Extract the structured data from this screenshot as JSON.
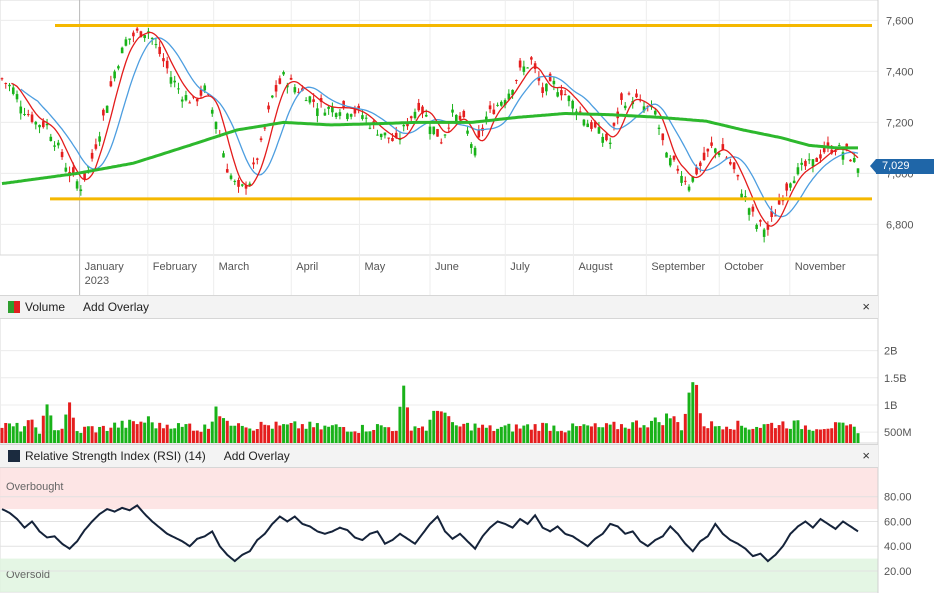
{
  "chart_data": [
    {
      "type": "candlestick",
      "y_ticks": [
        "7,600",
        "7,400",
        "7,200",
        "7,000",
        "6,800"
      ],
      "y_tick_values": [
        7600,
        7400,
        7200,
        7000,
        6800
      ],
      "ylim": [
        6680,
        7680
      ],
      "x_labels": [
        {
          "label": "January",
          "sub": "2023",
          "date": "2023-01-03"
        },
        {
          "label": "February",
          "date": "2023-02-01"
        },
        {
          "label": "March",
          "date": "2023-03-01"
        },
        {
          "label": "April",
          "date": "2023-04-03"
        },
        {
          "label": "May",
          "date": "2023-05-02"
        },
        {
          "label": "June",
          "date": "2023-06-01"
        },
        {
          "label": "July",
          "date": "2023-07-03"
        },
        {
          "label": "August",
          "date": "2023-08-01"
        },
        {
          "label": "September",
          "date": "2023-09-01"
        },
        {
          "label": "October",
          "date": "2023-10-02"
        },
        {
          "label": "November",
          "date": "2023-11-01"
        }
      ],
      "last_price": "7,029",
      "horizontal_lines": [
        7580,
        6900
      ],
      "close_path": [
        [
          0,
          7370
        ],
        [
          6,
          7330
        ],
        [
          12,
          7250
        ],
        [
          18,
          7200
        ],
        [
          24,
          7190
        ],
        [
          30,
          7100
        ],
        [
          36,
          7000
        ],
        [
          42,
          6950
        ],
        [
          48,
          7060
        ],
        [
          54,
          7220
        ],
        [
          60,
          7400
        ],
        [
          66,
          7520
        ],
        [
          72,
          7550
        ],
        [
          78,
          7560
        ],
        [
          84,
          7470
        ],
        [
          90,
          7380
        ],
        [
          96,
          7310
        ],
        [
          102,
          7280
        ],
        [
          108,
          7330
        ],
        [
          114,
          7210
        ],
        [
          120,
          7020
        ],
        [
          126,
          6930
        ],
        [
          132,
          6970
        ],
        [
          138,
          7110
        ],
        [
          144,
          7300
        ],
        [
          150,
          7380
        ],
        [
          156,
          7340
        ],
        [
          162,
          7310
        ],
        [
          168,
          7270
        ],
        [
          174,
          7255
        ],
        [
          180,
          7260
        ],
        [
          186,
          7250
        ],
        [
          192,
          7230
        ],
        [
          198,
          7180
        ],
        [
          204,
          7150
        ],
        [
          210,
          7120
        ],
        [
          216,
          7200
        ],
        [
          222,
          7270
        ],
        [
          228,
          7200
        ],
        [
          234,
          7130
        ],
        [
          240,
          7230
        ],
        [
          246,
          7200
        ],
        [
          252,
          7080
        ],
        [
          258,
          7220
        ],
        [
          264,
          7270
        ],
        [
          270,
          7320
        ],
        [
          276,
          7400
        ],
        [
          282,
          7440
        ],
        [
          288,
          7320
        ],
        [
          294,
          7350
        ],
        [
          300,
          7310
        ],
        [
          306,
          7260
        ],
        [
          312,
          7200
        ],
        [
          318,
          7160
        ],
        [
          324,
          7120
        ],
        [
          330,
          7280
        ],
        [
          336,
          7300
        ],
        [
          342,
          7260
        ],
        [
          348,
          7240
        ],
        [
          354,
          7060
        ],
        [
          360,
          7020
        ],
        [
          366,
          6960
        ],
        [
          372,
          7030
        ],
        [
          378,
          7100
        ],
        [
          384,
          7090
        ],
        [
          390,
          7010
        ],
        [
          396,
          6900
        ],
        [
          402,
          6800
        ],
        [
          408,
          6780
        ],
        [
          414,
          6880
        ],
        [
          420,
          6980
        ],
        [
          426,
          7020
        ],
        [
          432,
          7040
        ],
        [
          438,
          7090
        ],
        [
          444,
          7100
        ],
        [
          450,
          7080
        ],
        [
          456,
          7029
        ]
      ],
      "moving_average_200": [
        [
          0,
          6960
        ],
        [
          40,
          7000
        ],
        [
          70,
          7040
        ],
        [
          100,
          7110
        ],
        [
          125,
          7170
        ],
        [
          150,
          7200
        ],
        [
          175,
          7190
        ],
        [
          200,
          7195
        ],
        [
          220,
          7200
        ],
        [
          250,
          7200
        ],
        [
          275,
          7220
        ],
        [
          300,
          7235
        ],
        [
          325,
          7230
        ],
        [
          350,
          7220
        ],
        [
          375,
          7205
        ],
        [
          395,
          7170
        ],
        [
          415,
          7140
        ],
        [
          430,
          7110
        ],
        [
          445,
          7100
        ],
        [
          456,
          7100
        ]
      ],
      "x_index_dates": {
        "start": "2022-12-01",
        "end": "2023-11-30"
      }
    },
    {
      "type": "bar",
      "title": "Volume",
      "y_ticks": [
        "2B",
        "1.5B",
        "1B",
        "500M"
      ],
      "y_tick_values": [
        2000000000,
        1500000000,
        1000000000,
        500000000
      ],
      "ylim": [
        300000000,
        2600000000
      ],
      "volume_bars": [
        [
          0,
          0.62
        ],
        [
          5,
          0.6
        ],
        [
          10,
          0.58
        ],
        [
          15,
          0.66
        ],
        [
          20,
          0.55
        ],
        [
          24,
          0.9
        ],
        [
          28,
          0.6
        ],
        [
          32,
          0.56
        ],
        [
          35,
          1.05
        ],
        [
          40,
          0.5
        ],
        [
          46,
          0.58
        ],
        [
          52,
          0.55
        ],
        [
          60,
          0.62
        ],
        [
          70,
          0.65
        ],
        [
          78,
          0.72
        ],
        [
          84,
          0.6
        ],
        [
          90,
          0.66
        ],
        [
          96,
          0.58
        ],
        [
          100,
          0.64
        ],
        [
          105,
          0.55
        ],
        [
          110,
          0.6
        ],
        [
          114,
          1.02
        ],
        [
          120,
          0.62
        ],
        [
          126,
          0.74
        ],
        [
          132,
          0.6
        ],
        [
          140,
          0.63
        ],
        [
          150,
          0.6
        ],
        [
          160,
          0.62
        ],
        [
          170,
          0.58
        ],
        [
          180,
          0.6
        ],
        [
          190,
          0.56
        ],
        [
          200,
          0.6
        ],
        [
          210,
          0.58
        ],
        [
          214,
          1.2
        ],
        [
          218,
          0.62
        ],
        [
          226,
          0.58
        ],
        [
          234,
          1.0
        ],
        [
          240,
          0.6
        ],
        [
          250,
          0.62
        ],
        [
          260,
          0.56
        ],
        [
          270,
          0.58
        ],
        [
          280,
          0.6
        ],
        [
          290,
          0.62
        ],
        [
          300,
          0.56
        ],
        [
          310,
          0.6
        ],
        [
          320,
          0.58
        ],
        [
          330,
          0.62
        ],
        [
          340,
          0.66
        ],
        [
          350,
          0.7
        ],
        [
          356,
          0.8
        ],
        [
          362,
          0.6
        ],
        [
          368,
          1.5
        ],
        [
          374,
          0.65
        ],
        [
          380,
          0.62
        ],
        [
          386,
          0.66
        ],
        [
          392,
          0.62
        ],
        [
          398,
          0.6
        ],
        [
          406,
          0.62
        ],
        [
          414,
          0.66
        ],
        [
          422,
          0.64
        ],
        [
          430,
          0.6
        ],
        [
          440,
          0.62
        ],
        [
          450,
          0.58
        ],
        [
          456,
          0.56
        ]
      ]
    },
    {
      "type": "line",
      "title": "Relative Strength Index (RSI) (14)",
      "y_ticks": [
        "80.00",
        "60.00",
        "40.00",
        "20.00"
      ],
      "y_tick_values": [
        80,
        60,
        40,
        20
      ],
      "ylim": [
        3,
        104
      ],
      "zones": [
        {
          "label": "Overbought",
          "from": 70,
          "to": 104
        },
        {
          "label": "Oversold",
          "from": 3,
          "to": 30
        }
      ],
      "rsi_path": [
        [
          0,
          70
        ],
        [
          4,
          67
        ],
        [
          8,
          62
        ],
        [
          12,
          55
        ],
        [
          16,
          60
        ],
        [
          20,
          52
        ],
        [
          24,
          47
        ],
        [
          28,
          48
        ],
        [
          32,
          42
        ],
        [
          36,
          38
        ],
        [
          40,
          44
        ],
        [
          44,
          53
        ],
        [
          48,
          60
        ],
        [
          52,
          66
        ],
        [
          56,
          70
        ],
        [
          60,
          68
        ],
        [
          64,
          71
        ],
        [
          68,
          69
        ],
        [
          72,
          73
        ],
        [
          76,
          66
        ],
        [
          80,
          60
        ],
        [
          84,
          55
        ],
        [
          88,
          50
        ],
        [
          92,
          47
        ],
        [
          96,
          44
        ],
        [
          100,
          40
        ],
        [
          104,
          46
        ],
        [
          108,
          48
        ],
        [
          112,
          52
        ],
        [
          116,
          40
        ],
        [
          120,
          33
        ],
        [
          124,
          28
        ],
        [
          128,
          33
        ],
        [
          132,
          36
        ],
        [
          136,
          45
        ],
        [
          140,
          50
        ],
        [
          144,
          58
        ],
        [
          148,
          64
        ],
        [
          152,
          60
        ],
        [
          156,
          64
        ],
        [
          160,
          58
        ],
        [
          164,
          56
        ],
        [
          168,
          52
        ],
        [
          172,
          50
        ],
        [
          176,
          52
        ],
        [
          180,
          55
        ],
        [
          184,
          53
        ],
        [
          188,
          47
        ],
        [
          192,
          45
        ],
        [
          196,
          50
        ],
        [
          200,
          52
        ],
        [
          204,
          42
        ],
        [
          208,
          45
        ],
        [
          212,
          50
        ],
        [
          216,
          46
        ],
        [
          220,
          42
        ],
        [
          224,
          50
        ],
        [
          228,
          58
        ],
        [
          232,
          64
        ],
        [
          236,
          52
        ],
        [
          240,
          46
        ],
        [
          244,
          50
        ],
        [
          248,
          44
        ],
        [
          252,
          38
        ],
        [
          256,
          48
        ],
        [
          260,
          55
        ],
        [
          264,
          60
        ],
        [
          268,
          58
        ],
        [
          272,
          55
        ],
        [
          276,
          62
        ],
        [
          280,
          58
        ],
        [
          284,
          65
        ],
        [
          288,
          55
        ],
        [
          292,
          52
        ],
        [
          296,
          56
        ],
        [
          300,
          50
        ],
        [
          304,
          48
        ],
        [
          308,
          44
        ],
        [
          312,
          40
        ],
        [
          316,
          46
        ],
        [
          320,
          50
        ],
        [
          324,
          58
        ],
        [
          328,
          56
        ],
        [
          332,
          50
        ],
        [
          336,
          52
        ],
        [
          340,
          44
        ],
        [
          344,
          40
        ],
        [
          348,
          45
        ],
        [
          352,
          48
        ],
        [
          356,
          56
        ],
        [
          360,
          50
        ],
        [
          364,
          42
        ],
        [
          368,
          36
        ],
        [
          372,
          44
        ],
        [
          376,
          48
        ],
        [
          380,
          58
        ],
        [
          384,
          50
        ],
        [
          388,
          45
        ],
        [
          392,
          42
        ],
        [
          396,
          38
        ],
        [
          400,
          32
        ],
        [
          404,
          34
        ],
        [
          408,
          28
        ],
        [
          412,
          33
        ],
        [
          416,
          40
        ],
        [
          420,
          50
        ],
        [
          424,
          56
        ],
        [
          428,
          60
        ],
        [
          432,
          55
        ],
        [
          436,
          62
        ],
        [
          440,
          58
        ],
        [
          444,
          54
        ],
        [
          448,
          60
        ],
        [
          452,
          56
        ],
        [
          456,
          52
        ]
      ]
    }
  ],
  "panels": {
    "volume": {
      "title": "Volume",
      "overlay_label": "Add Overlay",
      "close_label": "×",
      "swatch_up": "#2e9e2e",
      "swatch_down": "#e02020"
    },
    "rsi": {
      "title": "Relative Strength Index (RSI) (14)",
      "overlay_label": "Add Overlay",
      "close_label": "×",
      "swatch": "#1b2b3f"
    }
  },
  "colors": {
    "up": "#19b219",
    "down": "#e51e1e",
    "ma_fast": "#e31c1c",
    "ma_slow": "#4d9ee0",
    "ma_200": "#2db82d",
    "levels": "#f5b800",
    "rsi_line": "#15233a",
    "overbought_fill": "#fde0e0",
    "oversold_fill": "#dff5df"
  }
}
